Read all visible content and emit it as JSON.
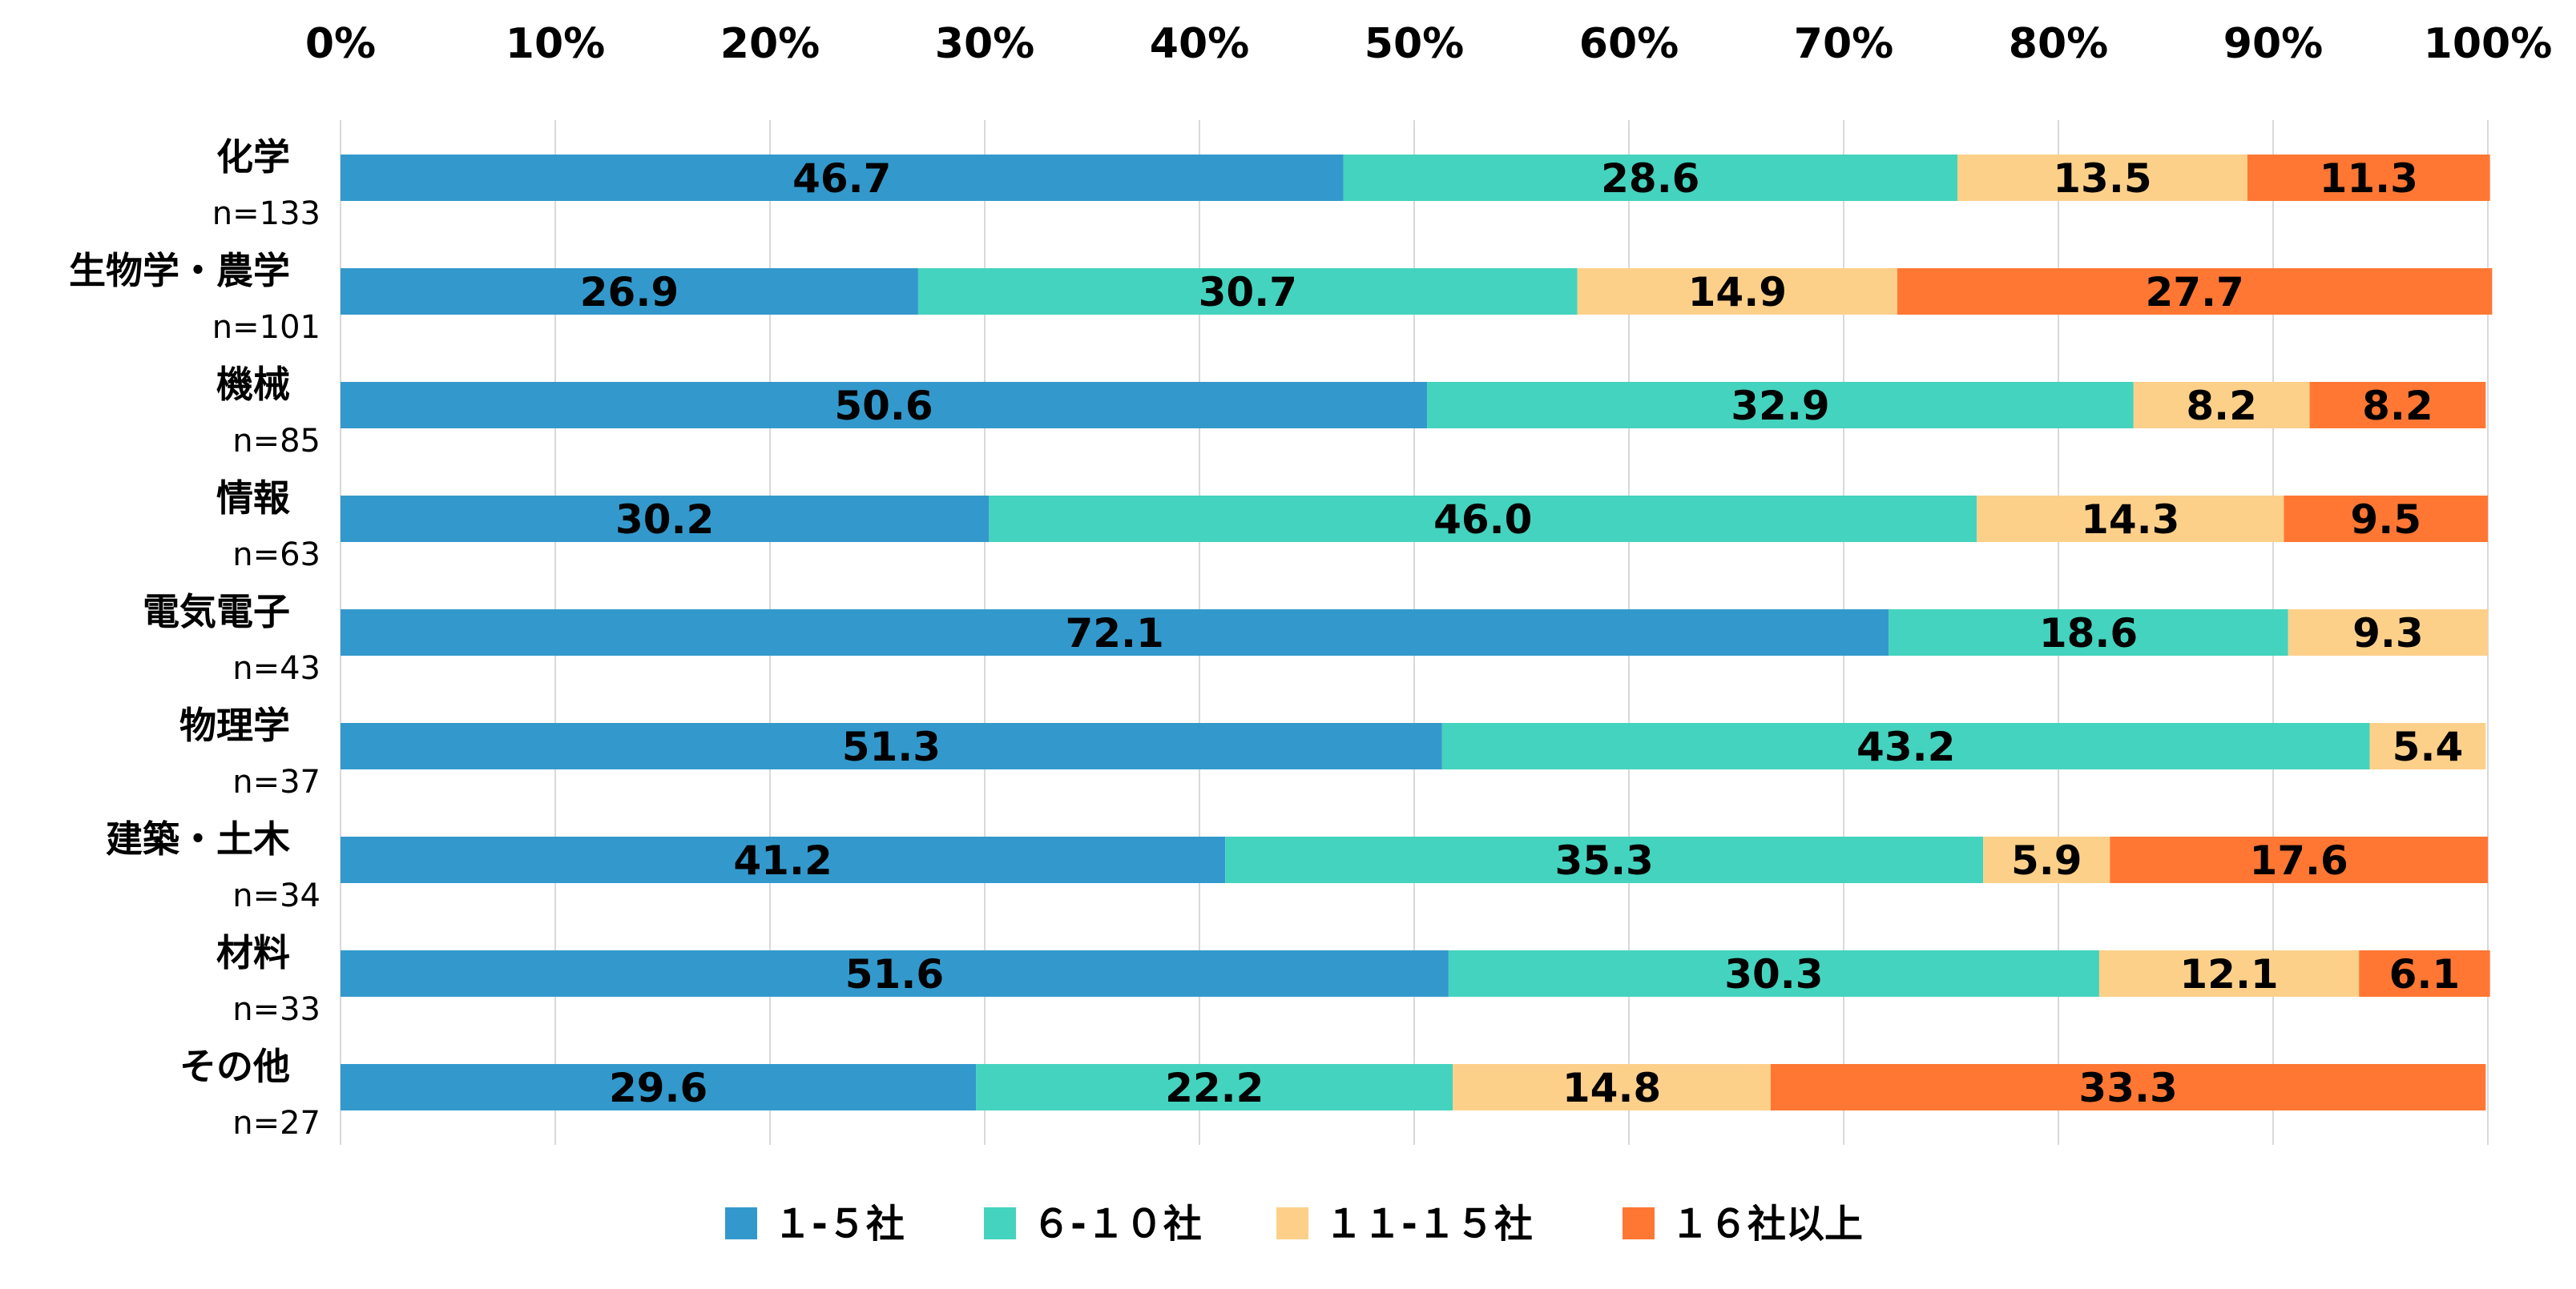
{
  "chart_data": {
    "type": "bar",
    "orientation": "horizontal",
    "stacked": "percent",
    "categories": [
      "化学",
      "生物学・農学",
      "機械",
      "情報",
      "電気電子",
      "物理学",
      "建築・土木",
      "材料",
      "その他"
    ],
    "sample_sizes": [
      "n=133",
      "n=101",
      "n=85",
      "n=63",
      "n=43",
      "n=37",
      "n=34",
      "n=33",
      "n=27"
    ],
    "series": [
      {
        "name": "1-5社",
        "color": "#3399CC",
        "values": [
          46.7,
          26.9,
          50.6,
          30.2,
          72.1,
          51.3,
          41.2,
          51.6,
          29.6
        ],
        "labels": [
          "46.7",
          "26.9",
          "50.6",
          "30.2",
          "72.1",
          "51.3",
          "41.2",
          "51.6",
          "29.6"
        ]
      },
      {
        "name": "6-10社",
        "color": "#44D3BE",
        "values": [
          28.6,
          30.7,
          32.9,
          46.0,
          18.6,
          43.2,
          35.3,
          30.3,
          22.2
        ],
        "labels": [
          "28.6",
          "30.7",
          "32.9",
          "46.0",
          "18.6",
          "43.2",
          "35.3",
          "30.3",
          "22.2"
        ]
      },
      {
        "name": "11-15社",
        "color": "#FDD08A",
        "values": [
          13.5,
          14.9,
          8.2,
          14.3,
          9.3,
          5.4,
          5.9,
          12.1,
          14.8
        ],
        "labels": [
          "13.5",
          "14.9",
          "8.2",
          "14.3",
          "9.3",
          "5.4",
          "5.9",
          "12.1",
          "14.8"
        ]
      },
      {
        "name": "16社以上",
        "color": "#FF7733",
        "values": [
          11.3,
          27.7,
          8.2,
          9.5,
          0,
          0,
          17.6,
          6.1,
          33.3
        ],
        "labels": [
          "11.3",
          "27.7",
          "8.2",
          "9.5",
          "",
          "",
          "17.6",
          "6.1",
          "33.3"
        ]
      }
    ],
    "x_ticks": [
      "0%",
      "10%",
      "20%",
      "30%",
      "40%",
      "50%",
      "60%",
      "70%",
      "80%",
      "90%",
      "100%"
    ],
    "xlim": [
      0,
      100
    ],
    "axis_position": "top",
    "grid": true,
    "legend": {
      "position": "bottom",
      "labels": [
        "１-５社",
        "６-１０社",
        "１１-１５社",
        "１６社以上"
      ]
    }
  }
}
